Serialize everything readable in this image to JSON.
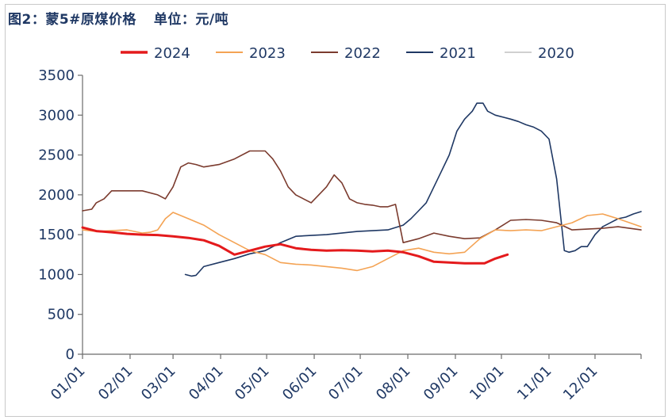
{
  "title": "图2：蒙5#原煤价格",
  "unit": "单位：元/吨",
  "chart_data": {
    "type": "line",
    "title": "图2：蒙5#原煤价格",
    "ylabel": "单位：元/吨",
    "xlabel": "",
    "ylim": [
      0,
      3500
    ],
    "yticks": [
      "0",
      "500",
      "1000",
      "1500",
      "2000",
      "2500",
      "3000",
      "3500"
    ],
    "xticks": [
      "01/01",
      "02/01",
      "03/01",
      "04/01",
      "05/01",
      "06/01",
      "07/01",
      "08/01",
      "09/01",
      "10/01",
      "11/01",
      "12/01"
    ],
    "grid": false,
    "legend_position": "top",
    "series": [
      {
        "name": "2024",
        "color": "#e41a1c",
        "width": 3,
        "x": [
          1,
          10,
          20,
          30,
          40,
          50,
          60,
          70,
          80,
          90,
          100,
          110,
          120,
          130,
          140,
          150,
          160,
          170,
          180,
          190,
          200,
          210,
          220,
          230,
          240,
          250,
          260,
          263,
          270,
          278
        ],
        "y": [
          1590,
          1545,
          1530,
          1510,
          1500,
          1495,
          1480,
          1460,
          1430,
          1360,
          1250,
          1300,
          1350,
          1380,
          1330,
          1310,
          1300,
          1305,
          1300,
          1290,
          1300,
          1280,
          1230,
          1160,
          1150,
          1140,
          1140,
          1140,
          1200,
          1250
        ]
      },
      {
        "name": "2023",
        "color": "#f4a354",
        "width": 1.6,
        "x": [
          1,
          10,
          20,
          30,
          40,
          45,
          50,
          55,
          60,
          70,
          80,
          90,
          100,
          110,
          120,
          130,
          140,
          150,
          160,
          170,
          180,
          190,
          200,
          210,
          220,
          230,
          240,
          250,
          260,
          270,
          280,
          290,
          300,
          310,
          320,
          330,
          340,
          350,
          365
        ],
        "y": [
          1560,
          1540,
          1550,
          1560,
          1520,
          1530,
          1560,
          1700,
          1780,
          1700,
          1620,
          1500,
          1400,
          1300,
          1250,
          1150,
          1130,
          1120,
          1100,
          1080,
          1050,
          1100,
          1200,
          1300,
          1330,
          1280,
          1260,
          1280,
          1450,
          1560,
          1550,
          1560,
          1550,
          1600,
          1650,
          1740,
          1760,
          1700,
          1600
        ]
      },
      {
        "name": "2022",
        "color": "#7b3b2e",
        "width": 1.6,
        "x": [
          1,
          7,
          10,
          15,
          20,
          30,
          40,
          50,
          55,
          60,
          65,
          70,
          75,
          80,
          90,
          100,
          110,
          120,
          125,
          130,
          135,
          140,
          145,
          150,
          155,
          160,
          165,
          170,
          175,
          180,
          185,
          190,
          195,
          200,
          205,
          210,
          220,
          230,
          240,
          250,
          260,
          270,
          280,
          290,
          300,
          310,
          320,
          330,
          340,
          350,
          365
        ],
        "y": [
          1800,
          1820,
          1900,
          1950,
          2050,
          2050,
          2050,
          2000,
          1950,
          2100,
          2350,
          2400,
          2380,
          2350,
          2380,
          2450,
          2550,
          2550,
          2450,
          2300,
          2100,
          2000,
          1950,
          1900,
          2000,
          2100,
          2250,
          2150,
          1950,
          1900,
          1880,
          1870,
          1850,
          1850,
          1880,
          1400,
          1450,
          1520,
          1480,
          1450,
          1460,
          1560,
          1680,
          1690,
          1680,
          1650,
          1560,
          1570,
          1580,
          1600,
          1560
        ]
      },
      {
        "name": "2021",
        "color": "#1f3864",
        "width": 1.6,
        "x": [
          68,
          72,
          75,
          80,
          90,
          100,
          110,
          120,
          130,
          140,
          150,
          160,
          170,
          180,
          190,
          200,
          210,
          215,
          220,
          225,
          230,
          235,
          240,
          245,
          250,
          255,
          258,
          262,
          265,
          270,
          280,
          285,
          290,
          295,
          300,
          305,
          310,
          315,
          318,
          322,
          326,
          330,
          335,
          340,
          345,
          350,
          355,
          360,
          365
        ],
        "y": [
          1000,
          980,
          990,
          1100,
          1150,
          1200,
          1260,
          1300,
          1400,
          1480,
          1490,
          1500,
          1520,
          1540,
          1550,
          1560,
          1620,
          1700,
          1800,
          1900,
          2100,
          2300,
          2500,
          2800,
          2950,
          3050,
          3150,
          3150,
          3050,
          3000,
          2950,
          2920,
          2880,
          2850,
          2800,
          2700,
          2200,
          1300,
          1280,
          1300,
          1350,
          1350,
          1500,
          1600,
          1650,
          1700,
          1720,
          1760,
          1790
        ]
      },
      {
        "name": "2020",
        "color": "#c9c9c9",
        "width": 1.4,
        "x": [],
        "y": []
      }
    ]
  }
}
